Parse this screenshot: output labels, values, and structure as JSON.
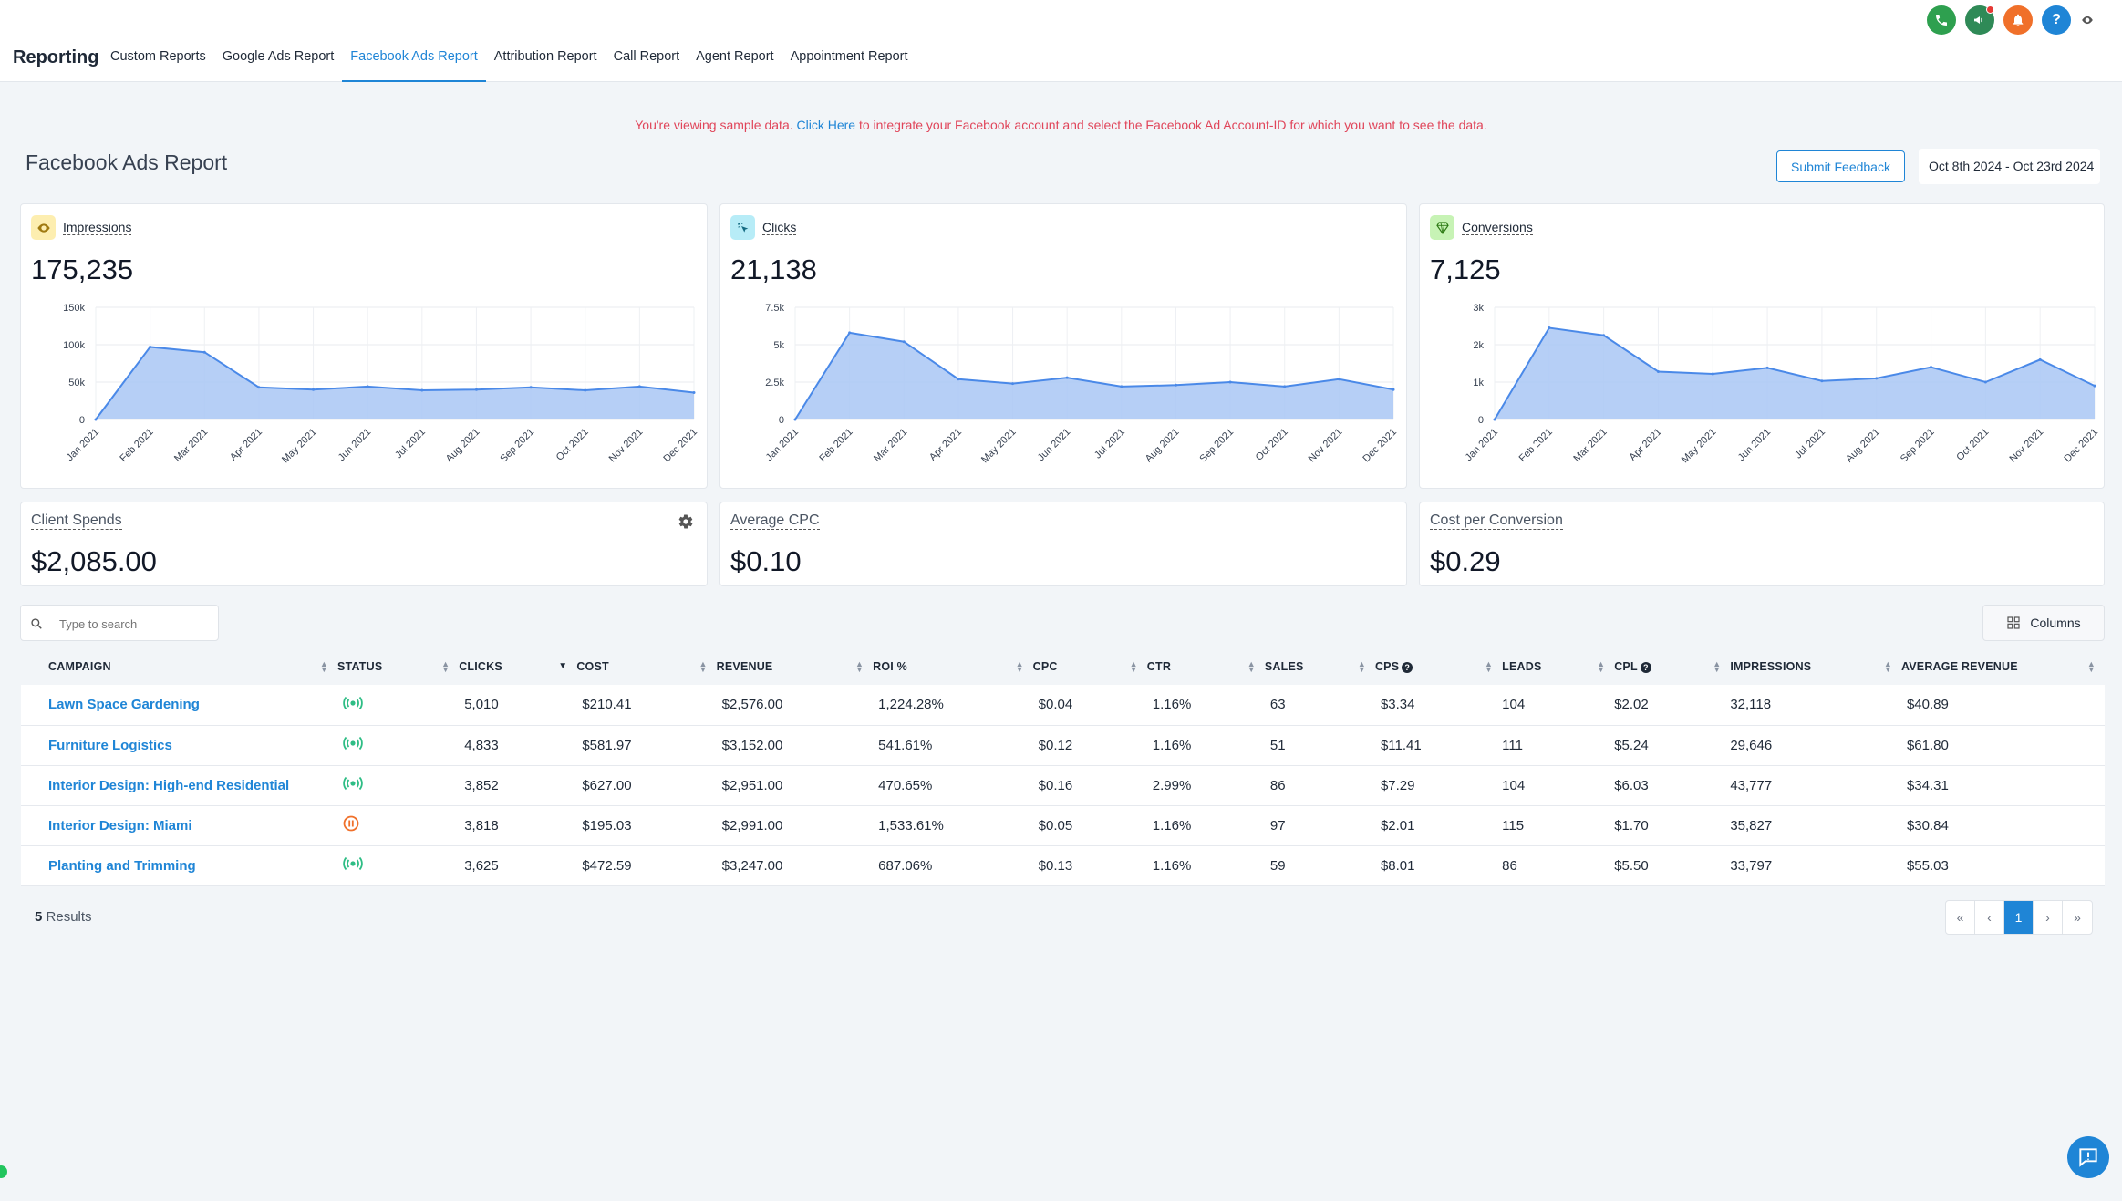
{
  "app": {
    "title": "Reporting"
  },
  "nav": {
    "items": [
      {
        "label": "Custom Reports",
        "active": false
      },
      {
        "label": "Google Ads Report",
        "active": false
      },
      {
        "label": "Facebook Ads Report",
        "active": true
      },
      {
        "label": "Attribution Report",
        "active": false
      },
      {
        "label": "Call Report",
        "active": false
      },
      {
        "label": "Agent Report",
        "active": false
      },
      {
        "label": "Appointment Report",
        "active": false
      }
    ]
  },
  "top_icons": [
    {
      "icon": "phone-icon",
      "color": "#2ea04f"
    },
    {
      "icon": "megaphone-icon",
      "color": "#2f8a57"
    },
    {
      "icon": "bell-icon",
      "color": "#f0702a"
    },
    {
      "icon": "help-icon",
      "color": "#1f85d6",
      "glyph": "?"
    }
  ],
  "notice": {
    "before": "You're viewing sample data.",
    "link": "Click Here",
    "after": "to integrate your Facebook account and select the Facebook Ad Account-ID for which you want to see the data."
  },
  "page": {
    "title": "Facebook Ads Report",
    "feedback_label": "Submit Feedback",
    "date_range": "Oct 8th 2024 - Oct 23rd 2024"
  },
  "metrics": [
    {
      "key": "impressions",
      "label": "Impressions",
      "value": "175,235",
      "icon": "eye-icon",
      "icon_bg": "#fdeeb0"
    },
    {
      "key": "clicks",
      "label": "Clicks",
      "value": "21,138",
      "icon": "click-icon",
      "icon_bg": "#b7ecf7"
    },
    {
      "key": "conversions",
      "label": "Conversions",
      "value": "7,125",
      "icon": "gem-icon",
      "icon_bg": "#c7f3b5"
    }
  ],
  "chart_data": [
    {
      "type": "area",
      "x": [
        "Jan 2021",
        "Feb 2021",
        "Mar 2021",
        "Apr 2021",
        "May 2021",
        "Jun 2021",
        "Jul 2021",
        "Aug 2021",
        "Sep 2021",
        "Oct 2021",
        "Nov 2021",
        "Dec 2021"
      ],
      "series": [
        {
          "values": [
            0,
            97000,
            90000,
            43000,
            40000,
            44000,
            39000,
            40000,
            43000,
            39000,
            44000,
            36000
          ]
        }
      ],
      "ylim": [
        0,
        150000
      ],
      "yticks": [
        0,
        50000,
        100000,
        150000
      ],
      "ytick_labels": [
        "0",
        "50k",
        "100k",
        "150k"
      ],
      "grid": true,
      "color": "#4a89e8"
    },
    {
      "type": "area",
      "x": [
        "Jan 2021",
        "Feb 2021",
        "Mar 2021",
        "Apr 2021",
        "May 2021",
        "Jun 2021",
        "Jul 2021",
        "Aug 2021",
        "Sep 2021",
        "Oct 2021",
        "Nov 2021",
        "Dec 2021"
      ],
      "series": [
        {
          "values": [
            0,
            5800,
            5200,
            2700,
            2400,
            2800,
            2200,
            2300,
            2500,
            2200,
            2700,
            2000
          ]
        }
      ],
      "ylim": [
        0,
        7500
      ],
      "yticks": [
        0,
        2500,
        5000,
        7500
      ],
      "ytick_labels": [
        "0",
        "2.5k",
        "5k",
        "7.5k"
      ],
      "grid": true,
      "color": "#4a89e8"
    },
    {
      "type": "area",
      "x": [
        "Jan 2021",
        "Feb 2021",
        "Mar 2021",
        "Apr 2021",
        "May 2021",
        "Jun 2021",
        "Jul 2021",
        "Aug 2021",
        "Sep 2021",
        "Oct 2021",
        "Nov 2021",
        "Dec 2021"
      ],
      "series": [
        {
          "values": [
            0,
            2450,
            2250,
            1280,
            1220,
            1380,
            1030,
            1100,
            1400,
            1000,
            1600,
            900
          ]
        }
      ],
      "ylim": [
        0,
        3000
      ],
      "yticks": [
        0,
        1000,
        2000,
        3000
      ],
      "ytick_labels": [
        "0",
        "1k",
        "2k",
        "3k"
      ],
      "grid": true,
      "color": "#4a89e8"
    }
  ],
  "stats": [
    {
      "label": "Client Spends",
      "value": "$2,085.00",
      "has_gear": true
    },
    {
      "label": "Average CPC",
      "value": "$0.10",
      "has_gear": false
    },
    {
      "label": "Cost per Conversion",
      "value": "$0.29",
      "has_gear": false
    }
  ],
  "table": {
    "search_placeholder": "Type to search",
    "columns_label": "Columns",
    "headers": [
      {
        "label": "CAMPAIGN",
        "width": 344
      },
      {
        "label": "STATUS",
        "width": 132
      },
      {
        "label": "CLICKS",
        "width": 128,
        "sorted": true
      },
      {
        "label": "COST",
        "width": 152
      },
      {
        "label": "REVENUE",
        "width": 170
      },
      {
        "label": "ROI %",
        "width": 174
      },
      {
        "label": "CPC",
        "width": 124
      },
      {
        "label": "CTR",
        "width": 128
      },
      {
        "label": "SALES",
        "width": 120
      },
      {
        "label": "CPS",
        "width": 138,
        "help": true
      },
      {
        "label": "LEADS",
        "width": 122
      },
      {
        "label": "CPL",
        "width": 126,
        "help": true
      },
      {
        "label": "IMPRESSIONS",
        "width": 186
      },
      {
        "label": "AVERAGE REVENUE",
        "width": 221
      }
    ],
    "rows": [
      {
        "campaign": "Lawn Space Gardening",
        "status": "active",
        "clicks": "5,010",
        "cost": "$210.41",
        "revenue": "$2,576.00",
        "roi": "1,224.28%",
        "cpc": "$0.04",
        "ctr": "1.16%",
        "sales": "63",
        "cps": "$3.34",
        "leads": "104",
        "cpl": "$2.02",
        "impressions": "32,118",
        "avg_revenue": "$40.89"
      },
      {
        "campaign": "Furniture Logistics",
        "status": "active",
        "clicks": "4,833",
        "cost": "$581.97",
        "revenue": "$3,152.00",
        "roi": "541.61%",
        "cpc": "$0.12",
        "ctr": "1.16%",
        "sales": "51",
        "cps": "$11.41",
        "leads": "111",
        "cpl": "$5.24",
        "impressions": "29,646",
        "avg_revenue": "$61.80"
      },
      {
        "campaign": "Interior Design: High-end Residential",
        "status": "active",
        "clicks": "3,852",
        "cost": "$627.00",
        "revenue": "$2,951.00",
        "roi": "470.65%",
        "cpc": "$0.16",
        "ctr": "2.99%",
        "sales": "86",
        "cps": "$7.29",
        "leads": "104",
        "cpl": "$6.03",
        "impressions": "43,777",
        "avg_revenue": "$34.31"
      },
      {
        "campaign": "Interior Design: Miami",
        "status": "paused",
        "clicks": "3,818",
        "cost": "$195.03",
        "revenue": "$2,991.00",
        "roi": "1,533.61%",
        "cpc": "$0.05",
        "ctr": "1.16%",
        "sales": "97",
        "cps": "$2.01",
        "leads": "115",
        "cpl": "$1.70",
        "impressions": "35,827",
        "avg_revenue": "$30.84"
      },
      {
        "campaign": "Planting and Trimming",
        "status": "active",
        "clicks": "3,625",
        "cost": "$472.59",
        "revenue": "$3,247.00",
        "roi": "687.06%",
        "cpc": "$0.13",
        "ctr": "1.16%",
        "sales": "59",
        "cps": "$8.01",
        "leads": "86",
        "cpl": "$5.50",
        "impressions": "33,797",
        "avg_revenue": "$55.03"
      }
    ],
    "results_count": "5",
    "results_label": "Results"
  },
  "pagination": {
    "first": "«",
    "prev": "‹",
    "current": "1",
    "next": "›",
    "last": "»"
  },
  "colors": {
    "accent": "#1f85d6",
    "notice": "#e0455a",
    "status_active": "#2ebd85",
    "status_paused": "#f0702a"
  }
}
